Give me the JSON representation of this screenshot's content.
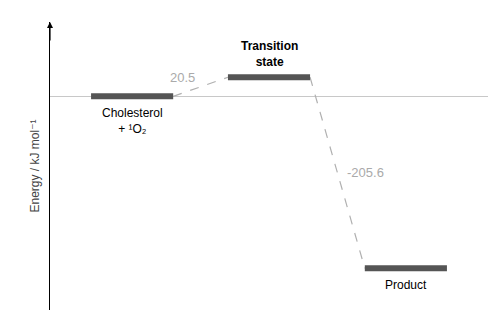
{
  "chart_data": {
    "type": "line",
    "categories": [
      "Cholesterol\n+ ¹O₂",
      "Transition\nstate",
      "Product"
    ],
    "values": [
      0.0,
      20.5,
      -185.1
    ],
    "color": "#555555",
    "ylabel": "Energy / kJ mol⁻¹",
    "ylim": [
      -230,
      80
    ],
    "yticks": [],
    "tick_labels": false,
    "grid": false,
    "line_style": "dashed",
    "annotations": [
      "20.5",
      "-205.6"
    ]
  }
}
